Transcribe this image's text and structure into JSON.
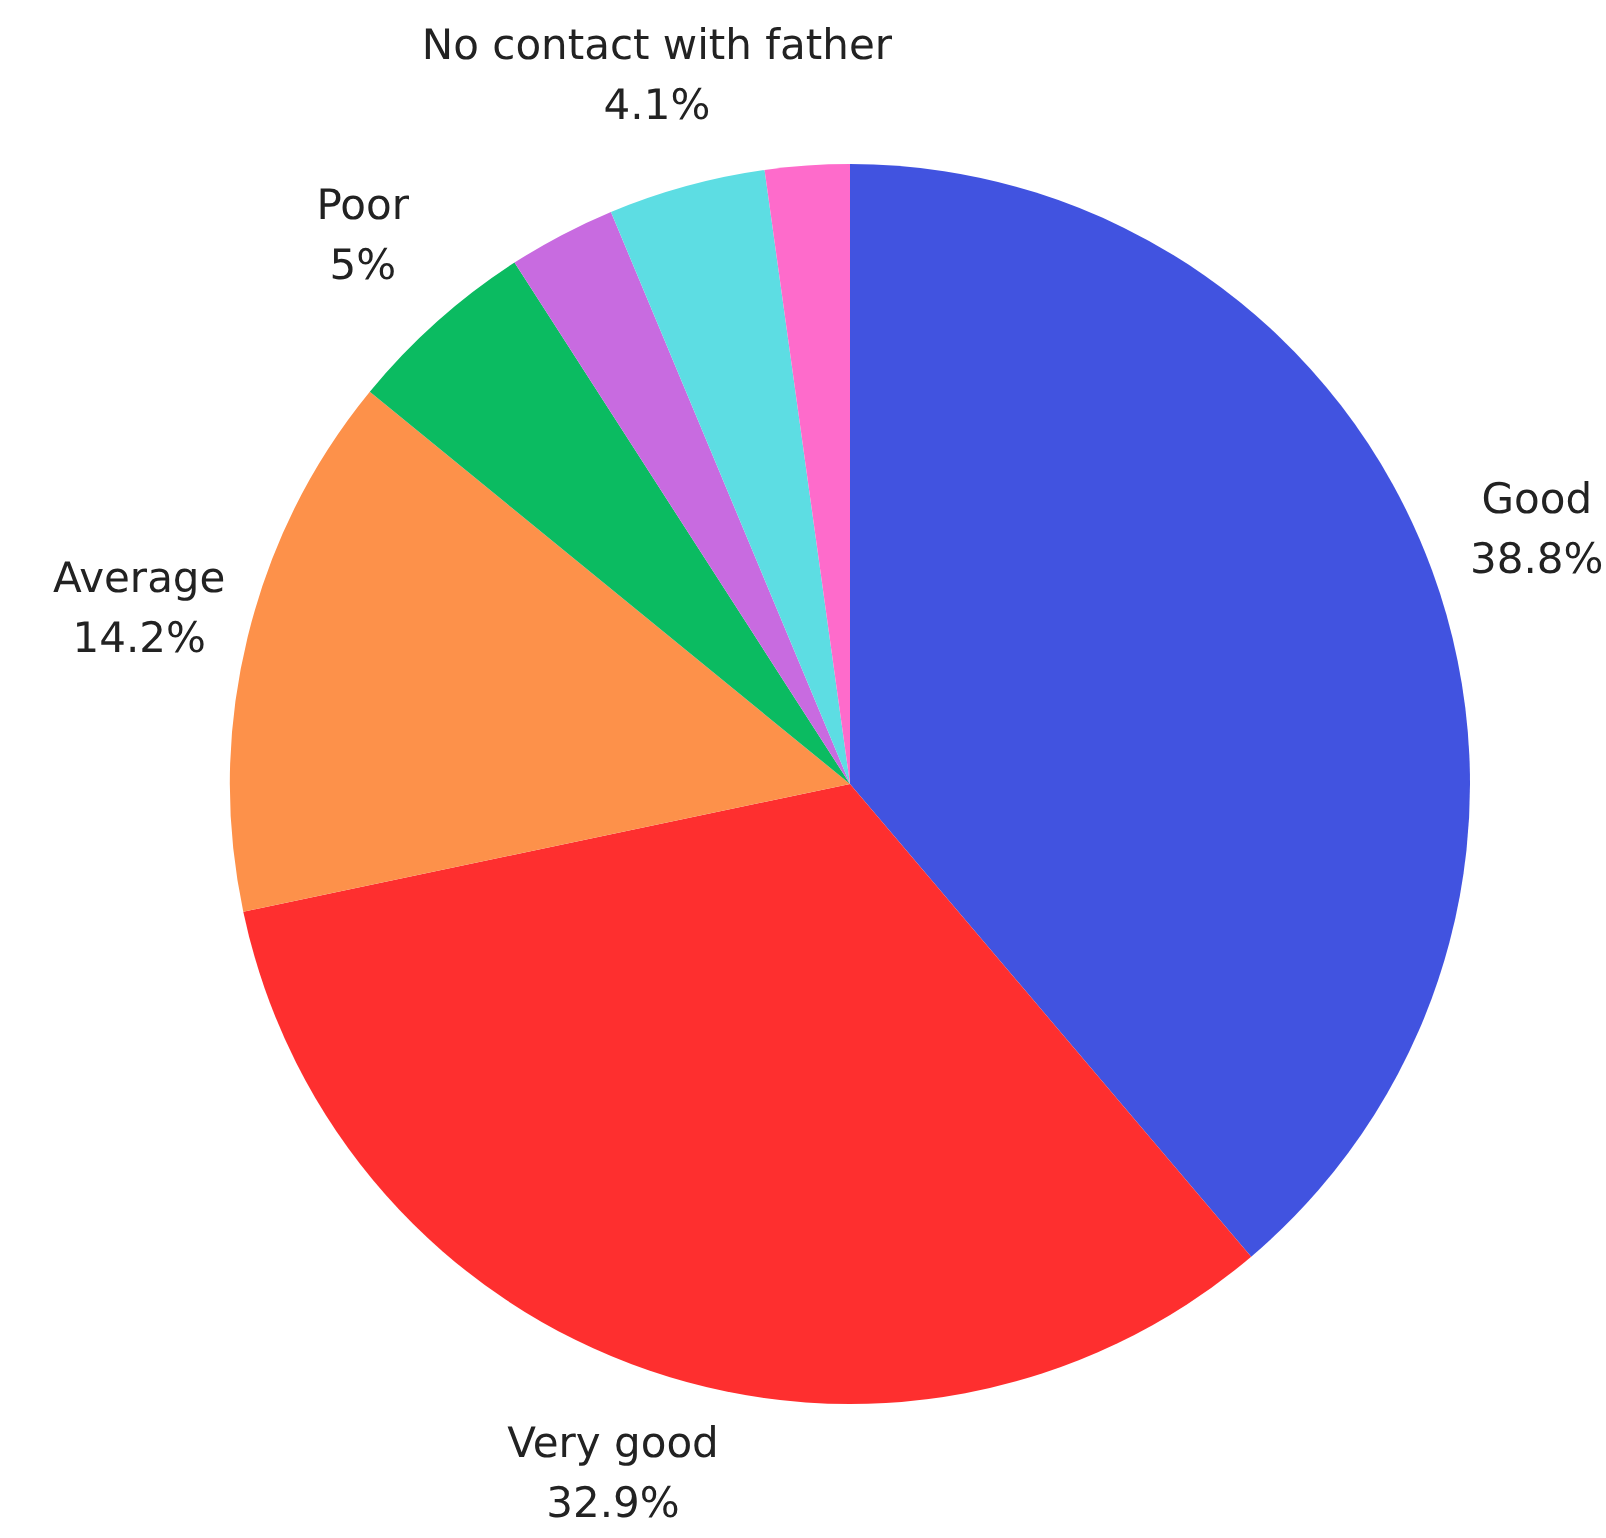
{
  "chart_data": {
    "type": "pie",
    "categories": [
      "Good",
      "Very good",
      "Average",
      "Poor",
      null,
      "No contact with father",
      null
    ],
    "values": [
      38.8,
      32.9,
      14.2,
      5,
      2.8,
      4.1,
      2.2
    ],
    "value_labels": [
      "38.8%",
      "32.9%",
      "14.2%",
      "5%",
      null,
      "4.1%",
      null
    ],
    "colors": [
      "#4153e0",
      "#fe2f2f",
      "#fd914a",
      "#0bbb61",
      "#c86be0",
      "#5ddde3",
      "#fe6bcb"
    ],
    "legend": false
  }
}
